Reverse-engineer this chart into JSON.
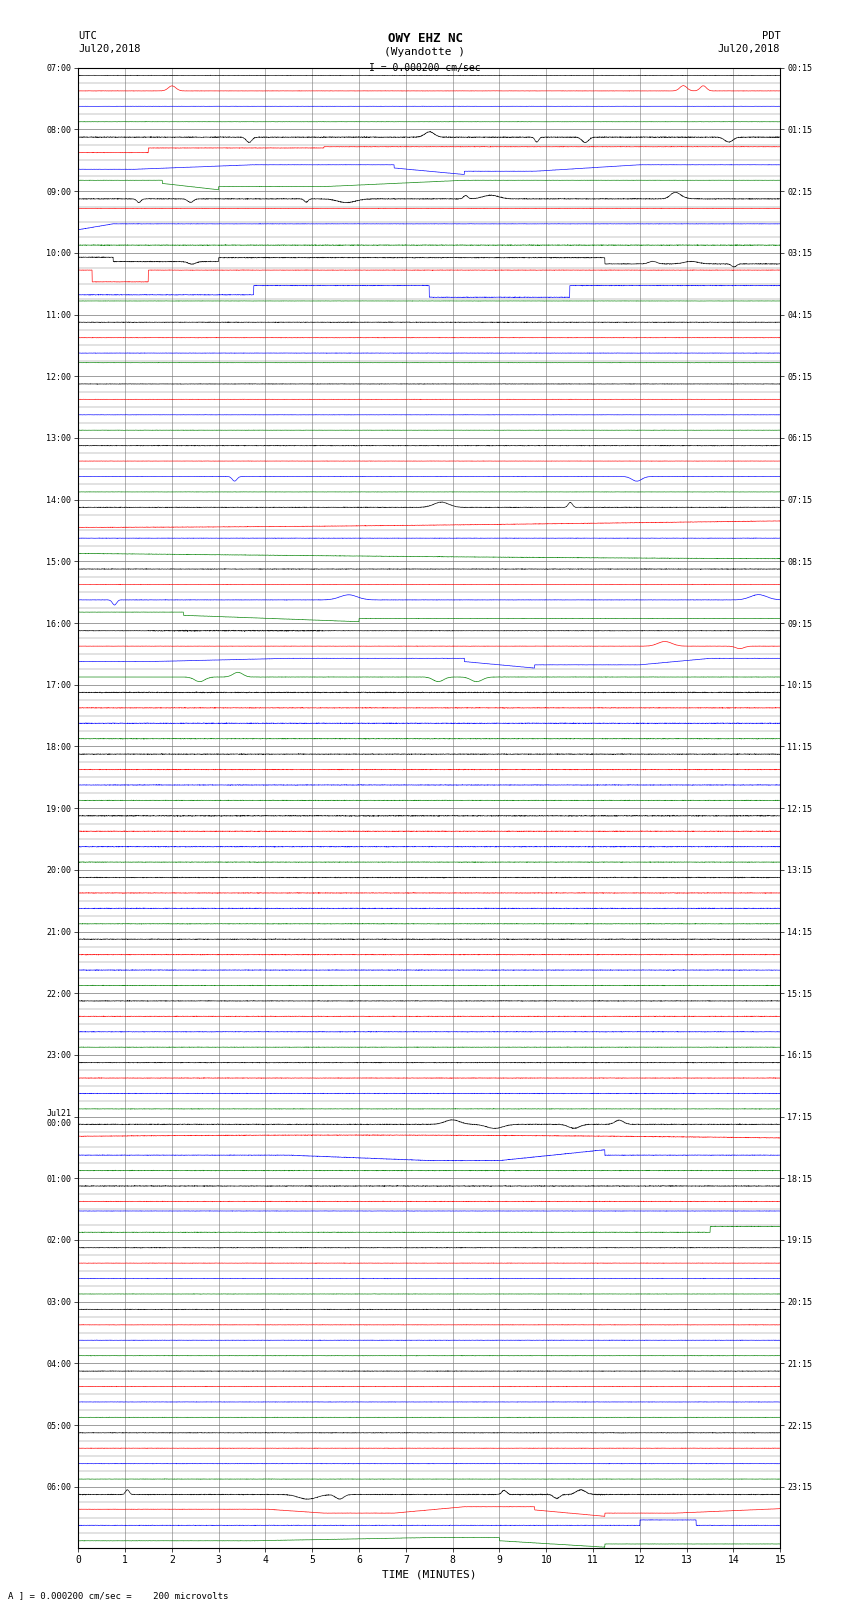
{
  "title_line1": "OWY EHZ NC",
  "title_line2": "(Wyandotte )",
  "scale_label": "I = 0.000200 cm/sec",
  "left_label_line1": "UTC",
  "left_label_line2": "Jul20,2018",
  "right_label_line1": "PDT",
  "right_label_line2": "Jul20,2018",
  "xlabel": "TIME (MINUTES)",
  "footer": "A ] = 0.000200 cm/sec =    200 microvolts",
  "left_times": [
    "07:00",
    "08:00",
    "09:00",
    "10:00",
    "11:00",
    "12:00",
    "13:00",
    "14:00",
    "15:00",
    "16:00",
    "17:00",
    "18:00",
    "19:00",
    "20:00",
    "21:00",
    "22:00",
    "23:00",
    "Jul21\n00:00",
    "01:00",
    "02:00",
    "03:00",
    "04:00",
    "05:00",
    "06:00"
  ],
  "right_times": [
    "00:15",
    "01:15",
    "02:15",
    "03:15",
    "04:15",
    "05:15",
    "06:15",
    "07:15",
    "08:15",
    "09:15",
    "10:15",
    "11:15",
    "12:15",
    "13:15",
    "14:15",
    "15:15",
    "16:15",
    "17:15",
    "18:15",
    "19:15",
    "20:15",
    "21:15",
    "22:15",
    "23:15"
  ],
  "n_rows": 24,
  "n_minutes": 15,
  "n_channels": 4,
  "bg_color": "#ffffff",
  "grid_color": "#777777",
  "channel_colors": [
    "black",
    "red",
    "blue",
    "green"
  ],
  "fig_width": 8.5,
  "fig_height": 16.13
}
